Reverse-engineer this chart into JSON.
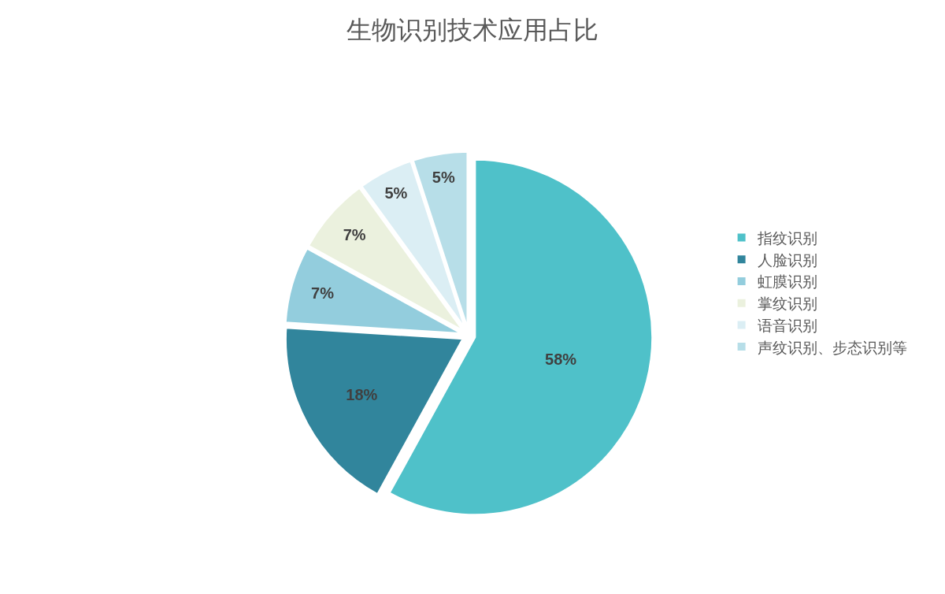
{
  "chart_data": {
    "type": "pie",
    "title": "生物识别技术应用占比",
    "categories": [
      "指纹识别",
      "人脸识别",
      "虹膜识别",
      "掌纹识别",
      "语音识别",
      "声纹识别、步态识别等"
    ],
    "values": [
      58,
      18,
      7,
      7,
      5,
      5
    ],
    "colors": [
      "#4fc1c9",
      "#31859c",
      "#93cddd",
      "#ebf1de",
      "#dbeef4",
      "#b7dee8"
    ],
    "value_labels": [
      "58%",
      "18%",
      "7%",
      "7%",
      "5%",
      "5%"
    ],
    "legend": "right"
  }
}
